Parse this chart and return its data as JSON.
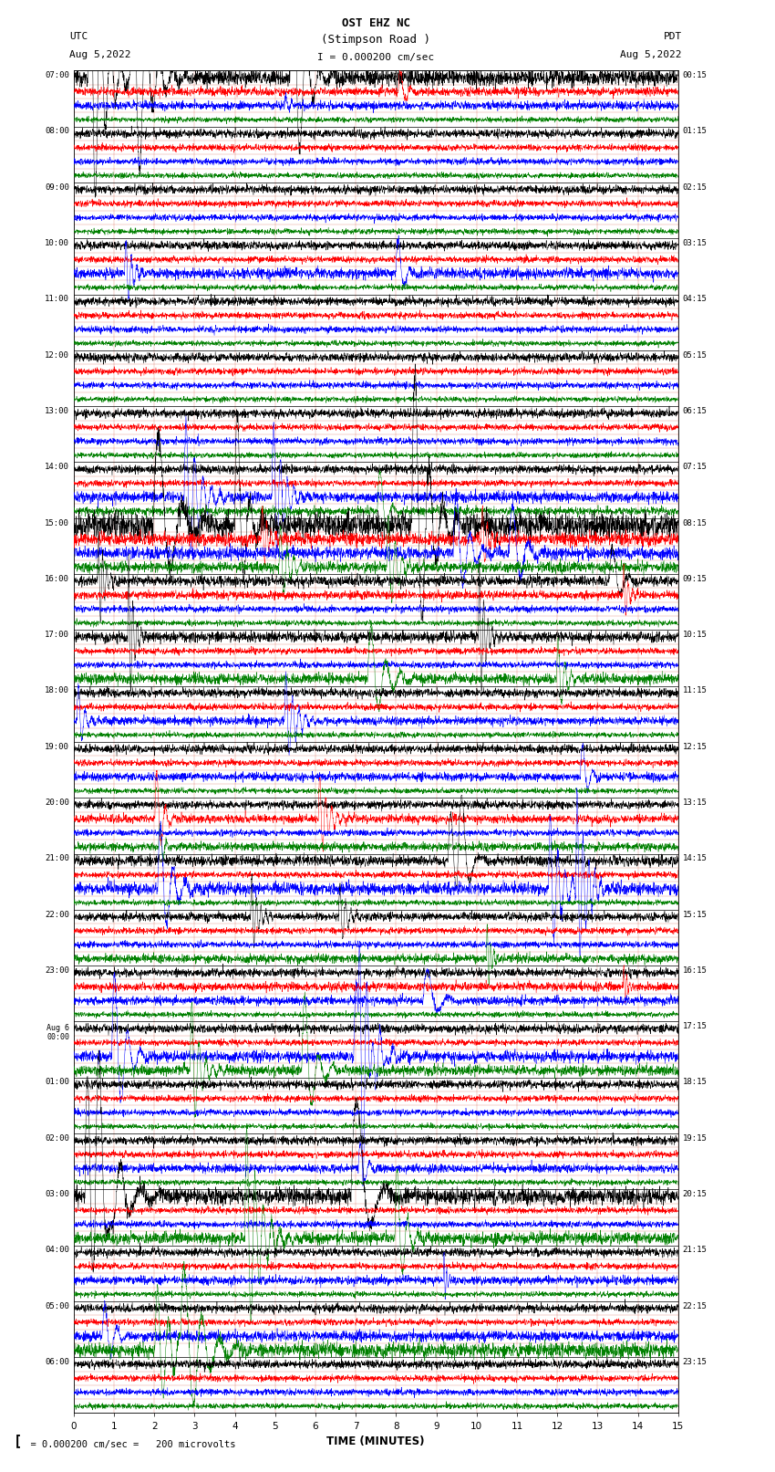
{
  "title_line1": "OST EHZ NC",
  "title_line2": "(Stimpson Road )",
  "title_line3": "I = 0.000200 cm/sec",
  "left_header_line1": "UTC",
  "left_header_line2": "Aug 5,2022",
  "right_header_line1": "PDT",
  "right_header_line2": "Aug 5,2022",
  "bottom_note": "= 0.000200 cm/sec =   200 microvolts",
  "xlabel": "TIME (MINUTES)",
  "xlim": [
    0,
    15
  ],
  "xticks": [
    0,
    1,
    2,
    3,
    4,
    5,
    6,
    7,
    8,
    9,
    10,
    11,
    12,
    13,
    14,
    15
  ],
  "background_color": "#ffffff",
  "trace_colors": [
    "black",
    "red",
    "blue",
    "green"
  ],
  "utc_times": [
    "07:00",
    "08:00",
    "09:00",
    "10:00",
    "11:00",
    "12:00",
    "13:00",
    "14:00",
    "15:00",
    "16:00",
    "17:00",
    "18:00",
    "19:00",
    "20:00",
    "21:00",
    "22:00",
    "23:00",
    "Aug 6\n00:00",
    "01:00",
    "02:00",
    "03:00",
    "04:00",
    "05:00",
    "06:00"
  ],
  "pdt_times": [
    "00:15",
    "01:15",
    "02:15",
    "03:15",
    "04:15",
    "05:15",
    "06:15",
    "07:15",
    "08:15",
    "09:15",
    "10:15",
    "11:15",
    "12:15",
    "13:15",
    "14:15",
    "15:15",
    "16:15",
    "17:15",
    "18:15",
    "19:15",
    "20:15",
    "21:15",
    "22:15",
    "23:15"
  ],
  "n_hours": 24,
  "traces_per_hour": 4,
  "fig_width": 8.5,
  "fig_height": 16.13,
  "dpi": 100
}
